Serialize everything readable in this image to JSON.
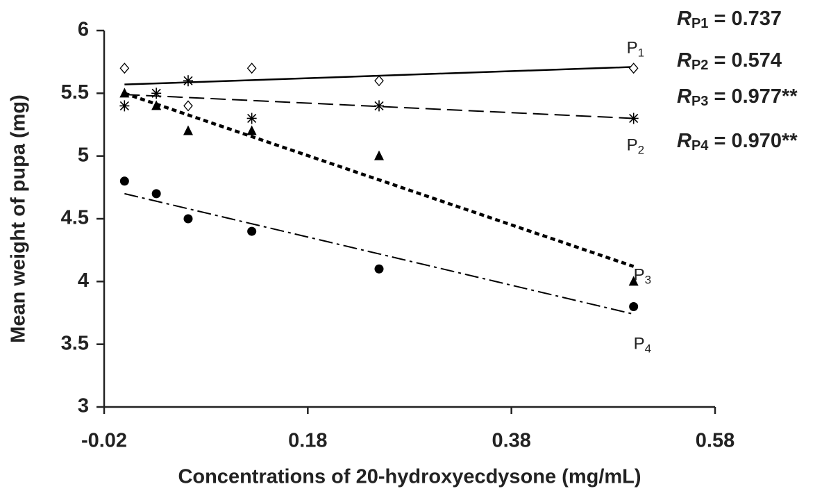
{
  "chart_data": {
    "type": "scatter",
    "xlabel": "Concentrations of 20-hydroxyecdysone (mg/mL)",
    "ylabel": "Mean weight of pupa (mg)",
    "xlim": [
      -0.02,
      0.58
    ],
    "xticks": [
      -0.02,
      0.18,
      0.38,
      0.58
    ],
    "ylim": [
      3,
      6
    ],
    "yticks": [
      3,
      3.5,
      4,
      4.5,
      5,
      5.5,
      6
    ],
    "series": [
      {
        "name": "P1",
        "color": "#000000",
        "marker": "diamond",
        "dash": "solid",
        "x": [
          0,
          0.0625,
          0.125,
          0.25,
          0.5
        ],
        "values": [
          5.7,
          5.4,
          5.7,
          5.6,
          5.7
        ],
        "trend": {
          "x": [
            0,
            0.5
          ],
          "values": [
            5.57,
            5.71
          ]
        }
      },
      {
        "name": "P2",
        "color": "#000000",
        "marker": "asterisk",
        "dash": "dashed",
        "x": [
          0,
          0.03125,
          0.0625,
          0.125,
          0.25,
          0.5
        ],
        "values": [
          5.4,
          5.5,
          5.6,
          5.3,
          5.4,
          5.3
        ],
        "trend": {
          "x": [
            0,
            0.5
          ],
          "values": [
            5.49,
            5.3
          ]
        }
      },
      {
        "name": "P3",
        "color": "#000000",
        "marker": "triangle",
        "dash": "dotted",
        "x": [
          0,
          0.03125,
          0.0625,
          0.125,
          0.25,
          0.5
        ],
        "values": [
          5.5,
          5.4,
          5.2,
          5.2,
          5.0,
          4.0
        ],
        "trend": {
          "x": [
            0,
            0.5
          ],
          "values": [
            5.5,
            4.12
          ]
        }
      },
      {
        "name": "P4",
        "color": "#000000",
        "marker": "circle",
        "dash": "dashdot",
        "x": [
          0,
          0.03125,
          0.0625,
          0.125,
          0.25,
          0.5
        ],
        "values": [
          4.8,
          4.7,
          4.5,
          4.4,
          4.1,
          3.8
        ],
        "trend": {
          "x": [
            0,
            0.5
          ],
          "values": [
            4.7,
            3.74
          ]
        }
      }
    ],
    "annotations": [
      "RP1 = 0.737",
      "RP2 = 0.574",
      "RP3 = 0.977**",
      "RP4 = 0.970**"
    ]
  }
}
